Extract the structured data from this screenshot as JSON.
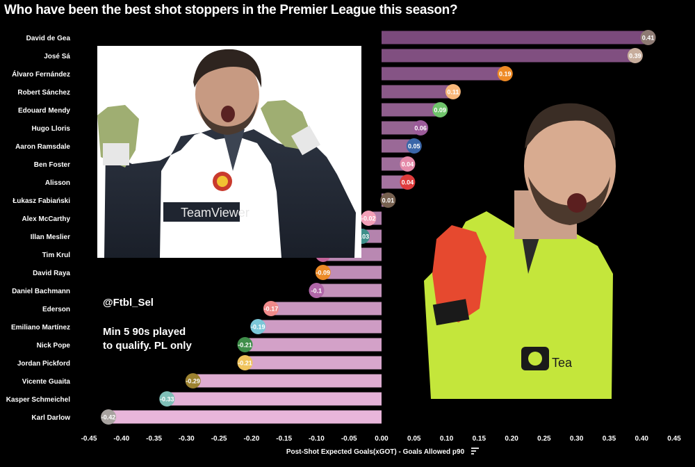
{
  "title": "Who have been the best shot stoppers in the Premier League this season?",
  "handle": "@Ftbl_Sel",
  "note_lines": [
    "Min 5 90s played",
    "to qualify. PL only"
  ],
  "colors": {
    "background": "#000000",
    "bar_top": "#7b4a7c",
    "bar_bottom": "#e8b6da"
  },
  "photo_left_icon": "player-celebrating-dark-kit-photo",
  "photo_right_icon": "player-shouting-yellow-kit-photo",
  "chart_data": {
    "type": "bar",
    "orientation": "horizontal",
    "xlabel": "Post-Shot Expected Goals(xGOT) - Goals Allowed p90",
    "xlim": [
      -0.45,
      0.45
    ],
    "xticks": [
      "-0.45",
      "-0.40",
      "-0.35",
      "-0.30",
      "-0.25",
      "-0.20",
      "-0.15",
      "-0.10",
      "-0.05",
      "0.00",
      "0.05",
      "0.10",
      "0.15",
      "0.20",
      "0.25",
      "0.30",
      "0.35",
      "0.40",
      "0.45"
    ],
    "grid": false,
    "categories": [
      "David de Gea",
      "José Sá",
      "Álvaro Fernández",
      "Robert Sánchez",
      "Edouard Mendy",
      "Hugo Lloris",
      "Aaron Ramsdale",
      "Ben Foster",
      "Alisson",
      "Łukasz Fabiański",
      "Alex McCarthy",
      "Illan Meslier",
      "Tim Krul",
      "David Raya",
      "Daniel Bachmann",
      "Ederson",
      "Emiliano Martínez",
      "Nick Pope",
      "Jordan Pickford",
      "Vicente Guaita",
      "Kasper Schmeichel",
      "Karl Darlow"
    ],
    "values": [
      0.41,
      0.39,
      0.19,
      0.11,
      0.09,
      0.06,
      0.05,
      0.04,
      0.04,
      0.01,
      -0.02,
      -0.03,
      -0.09,
      -0.09,
      -0.1,
      -0.17,
      -0.19,
      -0.21,
      -0.21,
      -0.29,
      -0.33,
      -0.42
    ],
    "labels": [
      "0.41",
      "0.39",
      "0.19",
      "0.11",
      "0.09",
      "0.06",
      "0.05",
      "0.04",
      "0.04",
      "0.01",
      "-0.02",
      "-0.03",
      "-0.09",
      "-0.09",
      "-0.1",
      "-0.17",
      "-0.19",
      "-0.21",
      "-0.21",
      "-0.29",
      "-0.33",
      "-0.42"
    ],
    "dot_colors": [
      "#8d7a73",
      "#c7ad9c",
      "#ee8a25",
      "#f7b77a",
      "#6fc46b",
      "#9b5b9a",
      "#3a66a8",
      "#e58aa9",
      "#df3c3c",
      "#76604f",
      "#f3a0b8",
      "#3f8f8a",
      "#c26399",
      "#eb8a26",
      "#b066a8",
      "#f08a8a",
      "#7bc7d8",
      "#3f8e4a",
      "#efc35c",
      "#9c8230",
      "#7fbfb8",
      "#a8a3a0"
    ]
  }
}
